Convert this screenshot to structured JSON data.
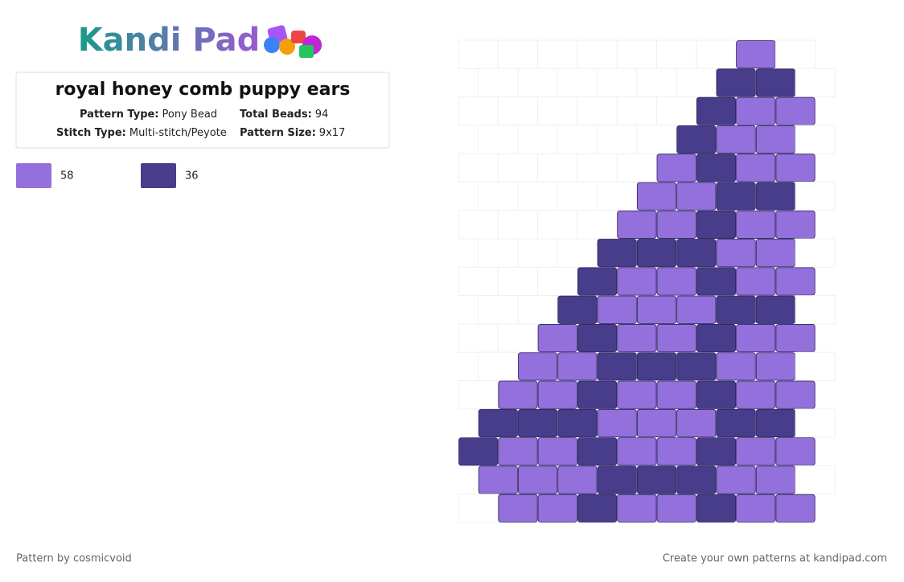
{
  "logo": {
    "text": "Kandi Pad"
  },
  "header": {
    "title": "royal honey comb puppy ears",
    "fields": [
      {
        "label": "Pattern Type:",
        "value": "Pony Bead"
      },
      {
        "label": "Total Beads:",
        "value": "94"
      },
      {
        "label": "Stitch Type:",
        "value": "Multi-stitch/Peyote"
      },
      {
        "label": "Pattern Size:",
        "value": "9x17"
      }
    ]
  },
  "palette": [
    {
      "color": "#9370db",
      "count": 58
    },
    {
      "color": "#483d8b",
      "count": 36
    }
  ],
  "pattern": {
    "rows": [
      [
        null,
        null,
        null,
        null,
        null,
        null,
        null,
        0,
        null
      ],
      [
        null,
        null,
        null,
        null,
        null,
        null,
        1,
        1,
        null
      ],
      [
        null,
        null,
        null,
        null,
        null,
        null,
        1,
        0,
        0
      ],
      [
        null,
        null,
        null,
        null,
        null,
        1,
        0,
        0,
        null
      ],
      [
        null,
        null,
        null,
        null,
        null,
        0,
        1,
        0,
        0
      ],
      [
        null,
        null,
        null,
        null,
        0,
        0,
        1,
        1,
        null
      ],
      [
        null,
        null,
        null,
        null,
        0,
        0,
        1,
        0,
        0
      ],
      [
        null,
        null,
        null,
        1,
        1,
        1,
        0,
        0,
        null
      ],
      [
        null,
        null,
        null,
        1,
        0,
        0,
        1,
        0,
        0
      ],
      [
        null,
        null,
        1,
        0,
        0,
        0,
        1,
        1,
        null
      ],
      [
        null,
        null,
        0,
        1,
        0,
        0,
        1,
        0,
        0
      ],
      [
        null,
        0,
        0,
        1,
        1,
        1,
        0,
        0,
        null
      ],
      [
        null,
        0,
        0,
        1,
        0,
        0,
        1,
        0,
        0
      ],
      [
        1,
        1,
        1,
        0,
        0,
        0,
        1,
        1,
        null
      ],
      [
        1,
        0,
        0,
        1,
        0,
        0,
        1,
        0,
        0
      ],
      [
        0,
        0,
        0,
        1,
        1,
        1,
        0,
        0,
        null
      ],
      [
        null,
        0,
        0,
        1,
        0,
        0,
        1,
        0,
        0
      ]
    ]
  },
  "footer": {
    "author": "Pattern by cosmicvoid",
    "link": "Create your own patterns at kandipad.com"
  }
}
